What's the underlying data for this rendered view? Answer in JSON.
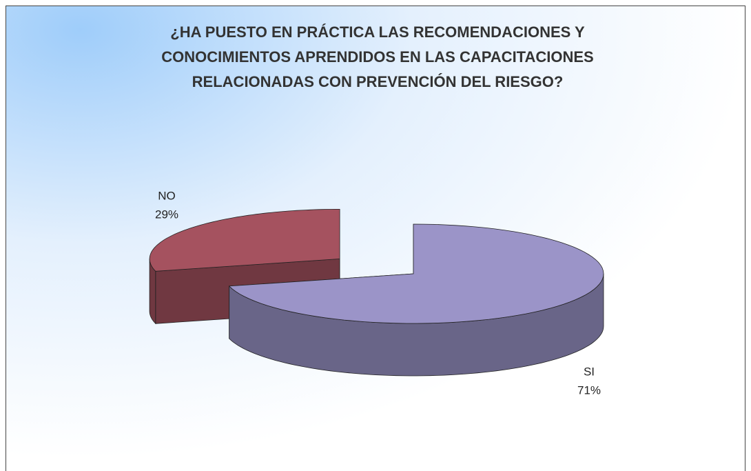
{
  "chart_data": {
    "type": "pie3d",
    "title": [
      "¿HA PUESTO EN PRÁCTICA LAS RECOMENDACIONES Y",
      "CONOCIMIENTOS APRENDIDOS EN LAS CAPACITACIONES",
      "RELACIONADAS CON PREVENCIÓN DEL RIESGO?"
    ],
    "categories": [
      "SI",
      "NO"
    ],
    "values": [
      71,
      29
    ],
    "value_labels": [
      "71%",
      "29%"
    ],
    "colors": [
      "#9b94c8",
      "#a5525f"
    ]
  }
}
